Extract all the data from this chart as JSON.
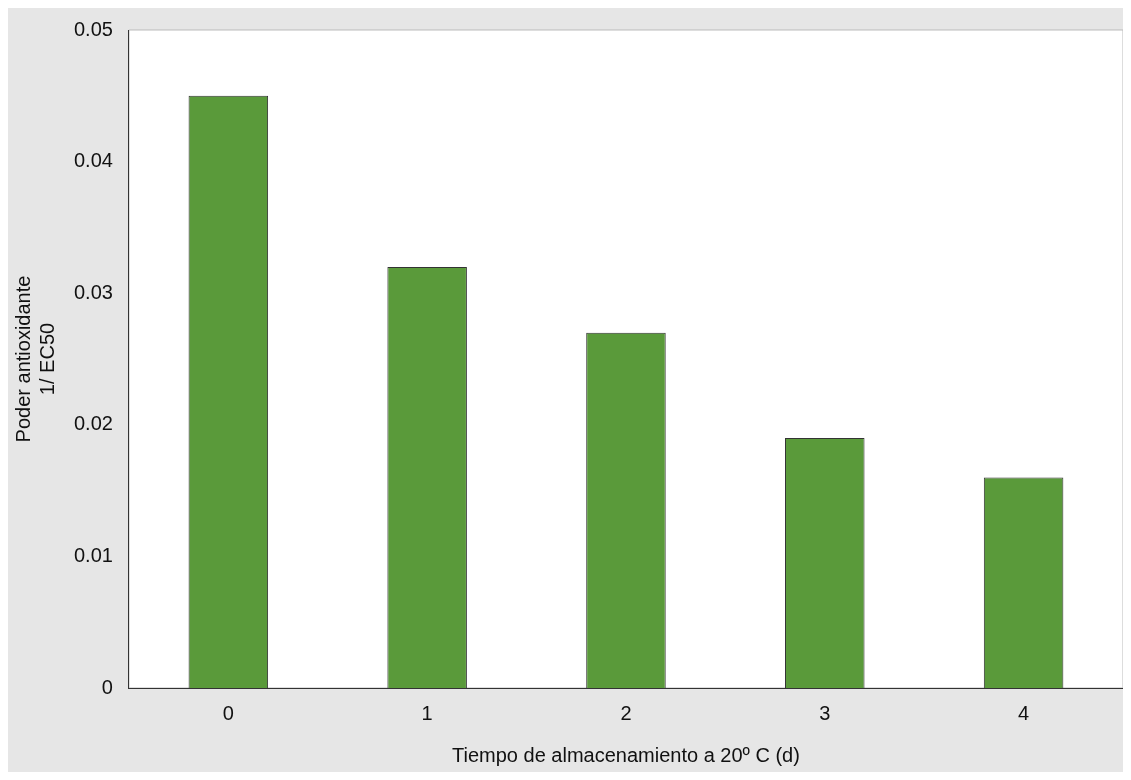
{
  "chart_data": {
    "type": "bar",
    "xlabel": "Tiempo de almacenamiento a 20º C (d)",
    "ylabel": "Poder antioxidante\n1/ EC50",
    "categories": [
      "0",
      "1",
      "2",
      "3",
      "4"
    ],
    "values": [
      0.045,
      0.032,
      0.027,
      0.019,
      0.016
    ],
    "color": "#5a9a3a",
    "ylim": [
      0,
      0.05
    ],
    "yticks": [
      0,
      0.01,
      0.02,
      0.03,
      0.04,
      0.05
    ],
    "grid": false,
    "legend": false
  }
}
